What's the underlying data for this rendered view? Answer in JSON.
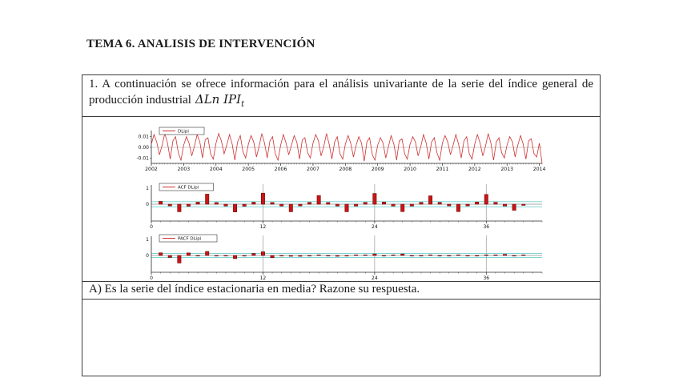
{
  "page": {
    "title": "TEMA 6. ANALISIS DE INTERVENCIÓN"
  },
  "question1": {
    "text": "1. A continuación se ofrece información para el análisis univariante de la serie del índice general de producción industrial",
    "formula": "ΔLn IPI",
    "formula_sub": "t"
  },
  "questionA": {
    "text": "A) Es la serie del índice estacionaria en media? Razone su respuesta."
  },
  "colors": {
    "series": "#cc3030",
    "bar_fill": "#cc1414",
    "bar_border": "#5a0000",
    "confidence": "#6ecfcf",
    "grid": "#9a9a9a",
    "axis": "#2a2a2a",
    "legend_border": "#333333"
  },
  "chart_data": [
    {
      "type": "line",
      "legend": "DLipi",
      "xlabel": "",
      "ylabel": "",
      "x_tick_labels": [
        "2002",
        "2003",
        "2004",
        "2005",
        "2006",
        "2007",
        "2008",
        "2009",
        "2010",
        "2011",
        "2012",
        "2013",
        "2014"
      ],
      "points_per_year": 12,
      "y_ticks": [
        {
          "label": "0.01",
          "value": 0.01
        },
        {
          "label": "0.00",
          "value": 0.0
        },
        {
          "label": "-0.01",
          "value": -0.01
        }
      ],
      "ylim": [
        -0.015,
        0.015
      ],
      "values": [
        0.003,
        0.012,
        0.005,
        -0.007,
        0.002,
        0.013,
        0.004,
        -0.011,
        0.006,
        0.01,
        -0.005,
        -0.012,
        0.002,
        0.01,
        0.004,
        -0.008,
        0.001,
        0.012,
        0.005,
        -0.01,
        0.007,
        0.009,
        -0.006,
        -0.011,
        0.004,
        0.013,
        0.006,
        -0.006,
        0.002,
        0.012,
        0.003,
        -0.012,
        0.005,
        0.011,
        -0.004,
        -0.01,
        0.003,
        0.011,
        0.005,
        -0.009,
        0.001,
        0.013,
        0.004,
        -0.01,
        0.006,
        0.01,
        -0.006,
        -0.012,
        0.002,
        0.012,
        0.004,
        -0.007,
        0.002,
        0.011,
        0.005,
        -0.011,
        0.007,
        0.009,
        -0.005,
        -0.01,
        0.004,
        0.012,
        0.006,
        -0.008,
        0.001,
        0.013,
        0.003,
        -0.011,
        0.005,
        0.01,
        -0.006,
        -0.011,
        0.003,
        0.011,
        0.004,
        -0.009,
        0.002,
        0.01,
        0.004,
        -0.013,
        0.005,
        0.009,
        -0.007,
        -0.012,
        0.002,
        0.009,
        0.004,
        -0.01,
        0.001,
        0.011,
        0.003,
        -0.012,
        0.006,
        0.008,
        -0.006,
        -0.011,
        0.003,
        0.01,
        0.005,
        -0.008,
        0.001,
        0.012,
        0.004,
        -0.011,
        0.005,
        0.009,
        -0.005,
        -0.012,
        0.004,
        0.011,
        0.005,
        -0.007,
        0.002,
        0.012,
        0.003,
        -0.01,
        0.006,
        0.01,
        -0.006,
        -0.011,
        0.003,
        0.012,
        0.004,
        -0.008,
        0.001,
        0.013,
        0.004,
        -0.012,
        0.005,
        0.009,
        -0.005,
        -0.01,
        0.002,
        0.01,
        0.005,
        -0.009,
        0.002,
        0.011,
        0.003,
        -0.011,
        0.006,
        0.008,
        -0.006,
        -0.009,
        0.004,
        -0.015
      ]
    },
    {
      "type": "bar",
      "legend": "ACF DLipi",
      "x_ticks": [
        0,
        12,
        24,
        36
      ],
      "grid_x": [
        12,
        24,
        36
      ],
      "y_tick_labels": [
        "1",
        "0"
      ],
      "ylim": [
        -1,
        1
      ],
      "confidence": 0.15,
      "lags": 40,
      "values": [
        0.17,
        -0.1,
        -0.45,
        -0.12,
        0.12,
        0.6,
        0.1,
        -0.11,
        -0.46,
        -0.12,
        0.12,
        0.66,
        0.1,
        -0.11,
        -0.45,
        -0.1,
        0.11,
        0.52,
        0.1,
        -0.11,
        -0.45,
        -0.11,
        0.11,
        0.64,
        0.13,
        -0.11,
        -0.44,
        -0.11,
        0.11,
        0.5,
        0.11,
        -0.1,
        -0.44,
        -0.1,
        0.13,
        0.58,
        0.11,
        -0.11,
        -0.36,
        -0.07
      ]
    },
    {
      "type": "bar",
      "legend": "PACF DLipi",
      "x_ticks": [
        0,
        12,
        24,
        36
      ],
      "grid_x": [
        12,
        24,
        36
      ],
      "y_tick_labels": [
        "1",
        "0"
      ],
      "ylim": [
        -1,
        1
      ],
      "confidence": 0.12,
      "lags": 40,
      "values": [
        0.16,
        -0.12,
        -0.45,
        0.15,
        -0.03,
        0.24,
        -0.04,
        -0.02,
        -0.19,
        -0.04,
        0.12,
        0.22,
        -0.13,
        -0.03,
        -0.05,
        -0.05,
        -0.03,
        0.03,
        -0.02,
        -0.05,
        -0.04,
        0.03,
        0.02,
        0.09,
        -0.03,
        0.02,
        0.09,
        -0.02,
        -0.03,
        0.04,
        -0.02,
        -0.02,
        0.03,
        -0.02,
        -0.02,
        0.03,
        0.02,
        0.07,
        -0.03,
        0.02
      ]
    }
  ]
}
